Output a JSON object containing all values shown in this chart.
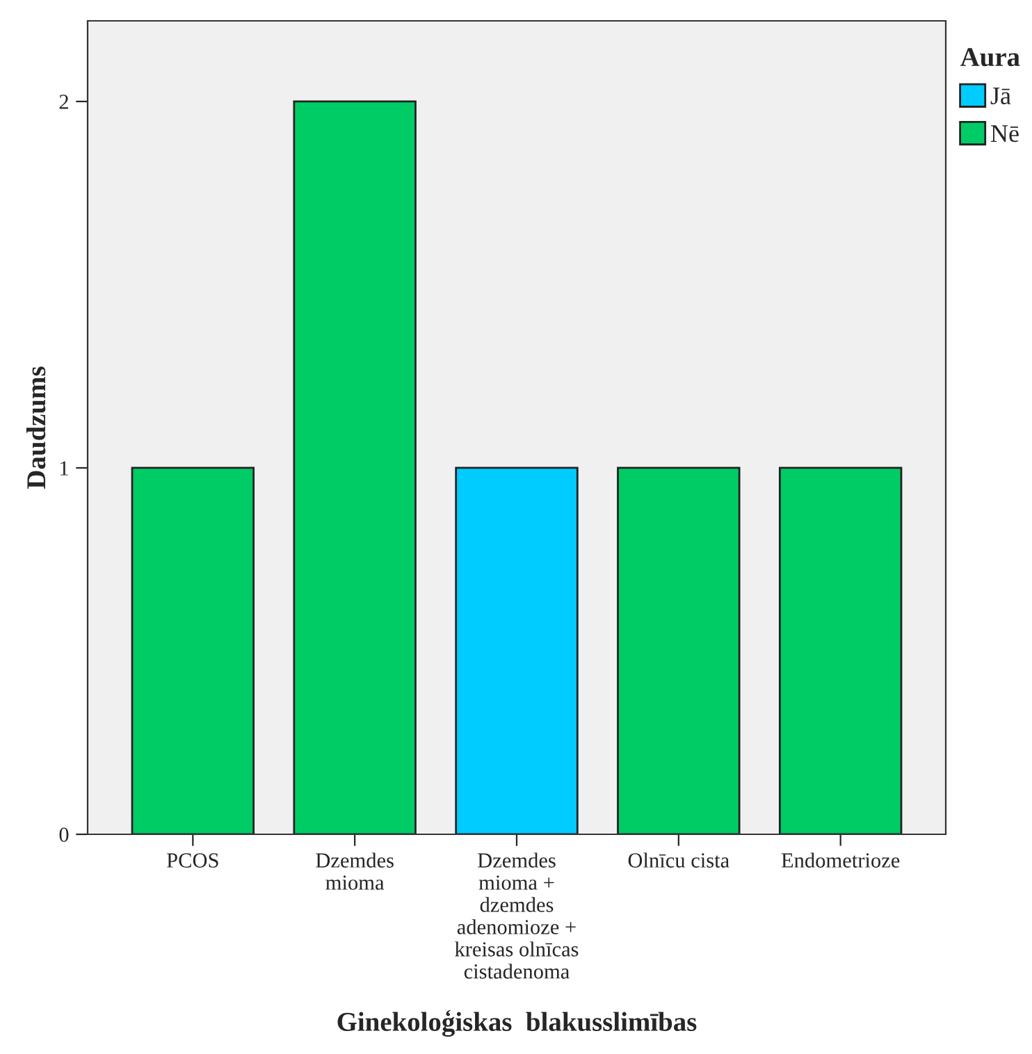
{
  "chart_data": {
    "type": "bar",
    "xlabel": "Ginekoloģiskas  blakusslimības",
    "ylabel": "Daudzums",
    "legend_title": "Aura",
    "categories": [
      "PCOS",
      "Dzemdes\nmioma",
      "Dzemdes\nmioma +\ndzemdes\nadenomioze +\nkreisas olnīcas\ncistadenoma",
      "Olnīcu cista",
      "Endometrioze"
    ],
    "series": [
      {
        "name": "Jā",
        "color": "#00ccff",
        "values": [
          null,
          null,
          1,
          null,
          null
        ]
      },
      {
        "name": "Nē",
        "color": "#00cc66",
        "values": [
          1,
          2,
          null,
          1,
          1
        ]
      }
    ],
    "ylim": [
      0,
      2.22
    ],
    "yticks": [
      0,
      1,
      2
    ],
    "grid": false,
    "legend": "top right"
  }
}
